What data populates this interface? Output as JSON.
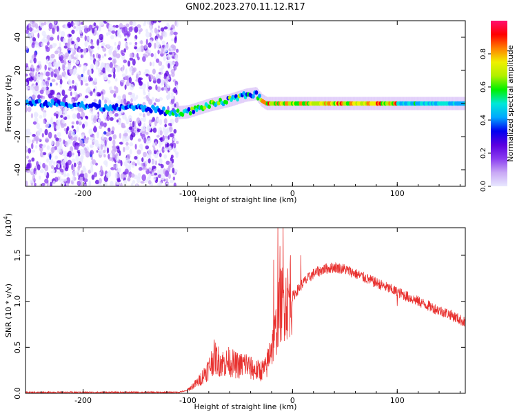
{
  "title": "GN02.2023.270.11.12.R17",
  "colors": {
    "snr_line": "#e8312f",
    "colormap": [
      "#e8e8ff",
      "#c9a8f5",
      "#8a3cf0",
      "#5a00e0",
      "#0000f0",
      "#00a8ff",
      "#00e8d8",
      "#00f000",
      "#b0f000",
      "#f0f000",
      "#ff8000",
      "#ff0000",
      "#ff1070"
    ]
  },
  "chart_data": [
    {
      "type": "heatmap",
      "xlabel": "Height of straight line (km)",
      "ylabel": "Frequency (Hz)",
      "xlim": [
        -255,
        165
      ],
      "ylim": [
        -50,
        50
      ],
      "xticks": [
        {
          "value": -200,
          "label": "-200"
        },
        {
          "value": -100,
          "label": "-100"
        },
        {
          "value": 0,
          "label": "0"
        },
        {
          "value": 100,
          "label": "100"
        }
      ],
      "yticks": [
        {
          "value": -40,
          "label": "-40"
        },
        {
          "value": -20,
          "label": "-20"
        },
        {
          "value": 0,
          "label": "0"
        },
        {
          "value": 20,
          "label": "20"
        },
        {
          "value": 40,
          "label": "40"
        }
      ],
      "colorbar": {
        "label": "Normalized spectral amplitude",
        "range": [
          0,
          1
        ],
        "ticks": [
          {
            "value": 0.0,
            "label": "0.0"
          },
          {
            "value": 0.2,
            "label": "0.2"
          },
          {
            "value": 0.4,
            "label": "0.4"
          },
          {
            "value": 0.6,
            "label": "0.6"
          },
          {
            "value": 0.8,
            "label": "0.8"
          }
        ]
      },
      "ridge": {
        "x": [
          -255,
          -230,
          -200,
          -175,
          -160,
          -140,
          -125,
          -118,
          -100,
          -80,
          -60,
          -45,
          -35,
          -30,
          -25,
          0,
          50,
          100,
          165
        ],
        "y": [
          0,
          0,
          -1,
          -3,
          -2,
          -3,
          -4,
          -6,
          -5,
          -1,
          2,
          5,
          6,
          2,
          0,
          0,
          0,
          0,
          0
        ]
      }
    },
    {
      "type": "line",
      "xlabel": "Height of straight line (km)",
      "ylabel": "SNR (10 * v/v)",
      "yscale_label": "(x10",
      "yscale_exponent": "4",
      "yscale_suffix": ")",
      "xlim": [
        -255,
        165
      ],
      "ylim": [
        0,
        1.8
      ],
      "xticks": [
        {
          "value": -200,
          "label": "-200"
        },
        {
          "value": -100,
          "label": "-100"
        },
        {
          "value": 0,
          "label": "0"
        },
        {
          "value": 100,
          "label": "100"
        }
      ],
      "yticks": [
        {
          "value": 0.0,
          "label": "0.0"
        },
        {
          "value": 0.5,
          "label": "0.5"
        },
        {
          "value": 1.0,
          "label": "1.0"
        },
        {
          "value": 1.5,
          "label": "1.5"
        }
      ],
      "series": [
        {
          "x": [
            -255,
            -200,
            -150,
            -110,
            -100,
            -90,
            -80,
            -75,
            -70,
            -65,
            -60,
            -55,
            -50,
            -45,
            -40,
            -35,
            -30,
            -25,
            -20,
            -15,
            -12,
            -10,
            -8,
            -5,
            0,
            10,
            20,
            30,
            40,
            50,
            60,
            70,
            80,
            90,
            100,
            110,
            120,
            130,
            140,
            150,
            160,
            165
          ],
          "y": [
            0.01,
            0.01,
            0.01,
            0.01,
            0.03,
            0.1,
            0.22,
            0.32,
            0.28,
            0.26,
            0.28,
            0.25,
            0.24,
            0.26,
            0.22,
            0.2,
            0.2,
            0.22,
            0.45,
            0.7,
            0.9,
            0.95,
            0.95,
            0.95,
            1.05,
            1.2,
            1.3,
            1.35,
            1.37,
            1.35,
            1.3,
            1.25,
            1.2,
            1.15,
            1.1,
            1.05,
            1.0,
            0.95,
            0.9,
            0.86,
            0.8,
            0.77
          ]
        }
      ],
      "spikes": [
        {
          "x": -18,
          "y": 1.45
        },
        {
          "x": -14,
          "y": 1.85
        },
        {
          "x": -12,
          "y": 1.6
        },
        {
          "x": -9,
          "y": 1.85
        },
        {
          "x": -2,
          "y": 1.5
        },
        {
          "x": 8,
          "y": 1.5
        },
        {
          "x": 100,
          "y": 0.95
        }
      ]
    }
  ]
}
